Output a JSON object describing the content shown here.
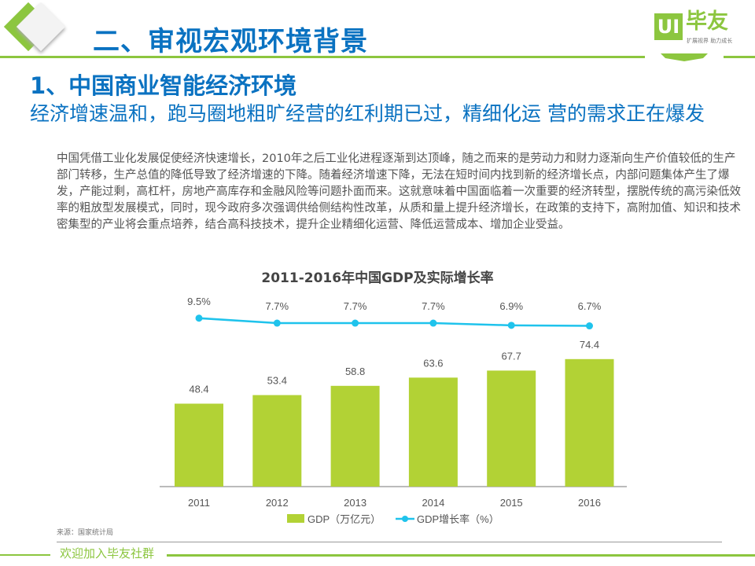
{
  "header": {
    "title": "二、审视宏观环境背景",
    "logo_mark": "UI",
    "logo_name": "毕友",
    "logo_tagline": "扩展视界 助力成长"
  },
  "section": {
    "heading": "1、中国商业智能经济环境",
    "subheading": "经济增速温和，跑马圈地粗旷经营的红利期已过，精细化运 营的需求正在爆发"
  },
  "body_text": "中国凭借工业化发展促使经济快速增长，2010年之后工业化进程逐渐到达顶峰，随之而来的是劳动力和财力逐渐向生产价值较低的生产部门转移，生产总值的降低导致了经济增速的下降。随着经济增速下降，无法在短时间内找到新的经济增长点，内部问题集体产生了爆发，产能过剩，高杠杆，房地产高库存和金融风险等问题扑面而来。这就意味着中国面临着一次重要的经济转型，摆脱传统的高污染低效率的粗放型发展模式，同时，现今政府多次强调供给侧结构性改革，从质和量上提升经济增长，在政策的支持下，高附加值、知识和技术密集型的产业将会重点培养，结合高科技技术，提升企业精细化运营、降低运营成本、增加企业受益。",
  "chart_data": {
    "type": "bar",
    "title": "2011-2016年中国GDP及实际增长率",
    "categories": [
      "2011",
      "2012",
      "2013",
      "2014",
      "2015",
      "2016"
    ],
    "series": [
      {
        "name": "GDP（万亿元）",
        "type": "bar",
        "values": [
          48.4,
          53.4,
          58.8,
          63.6,
          67.7,
          74.4
        ],
        "labels": [
          "48.4",
          "53.4",
          "58.8",
          "63.6",
          "67.7",
          "74.4"
        ],
        "color": "#b2d235"
      },
      {
        "name": "GDP增长率（%）",
        "type": "line",
        "values": [
          9.5,
          7.7,
          7.7,
          7.7,
          6.9,
          6.7
        ],
        "labels": [
          "9.5%",
          "7.7%",
          "7.7%",
          "7.7%",
          "6.9%",
          "6.7%"
        ],
        "color": "#1fc3ec"
      }
    ],
    "legend": "bottom-center"
  },
  "source": "来源：国家统计局",
  "footer": "欢迎加入毕友社群"
}
